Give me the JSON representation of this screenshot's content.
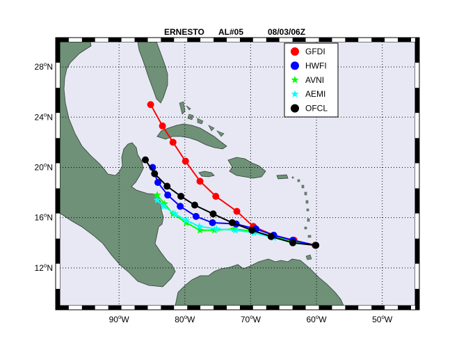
{
  "title": {
    "storm": "ERNESTO",
    "advisory": "AL#05",
    "date": "08/03/06Z"
  },
  "chart_data": {
    "type": "map-track",
    "lon_range": [
      -99,
      -45
    ],
    "lat_range": [
      9,
      30
    ],
    "lon_ticks": [
      {
        "value": -90,
        "num": "90",
        "hem": "W"
      },
      {
        "value": -80,
        "num": "80",
        "hem": "W"
      },
      {
        "value": -70,
        "num": "70",
        "hem": "W"
      },
      {
        "value": -60,
        "num": "60",
        "hem": "W"
      },
      {
        "value": -50,
        "num": "50",
        "hem": "W"
      }
    ],
    "lat_ticks": [
      {
        "value": 12,
        "num": "12",
        "hem": "N"
      },
      {
        "value": 16,
        "num": "16",
        "hem": "N"
      },
      {
        "value": 20,
        "num": "20",
        "hem": "N"
      },
      {
        "value": 24,
        "num": "24",
        "hem": "N"
      },
      {
        "value": 28,
        "num": "28",
        "hem": "N"
      }
    ],
    "grid": true,
    "legend_position": "top-right",
    "series": [
      {
        "name": "GFDI",
        "color": "#ff0000",
        "marker": "circle",
        "points": [
          [
            -85.2,
            25.0
          ],
          [
            -83.4,
            23.3
          ],
          [
            -81.8,
            22.0
          ],
          [
            -79.9,
            20.5
          ],
          [
            -77.7,
            18.9
          ],
          [
            -75.3,
            17.7
          ],
          [
            -72.1,
            16.5
          ],
          [
            -69.6,
            15.3
          ],
          [
            -66.5,
            14.6
          ],
          [
            -63.4,
            14.2
          ],
          [
            -60.2,
            13.8
          ]
        ]
      },
      {
        "name": "HWFI",
        "color": "#0000ff",
        "marker": "circle",
        "points": [
          [
            -84.9,
            20.0
          ],
          [
            -84.1,
            18.8
          ],
          [
            -82.6,
            17.8
          ],
          [
            -80.7,
            16.9
          ],
          [
            -78.3,
            16.1
          ],
          [
            -75.8,
            15.6
          ],
          [
            -72.2,
            15.5
          ],
          [
            -69.2,
            15.1
          ],
          [
            -66.5,
            14.6
          ],
          [
            -63.6,
            14.2
          ],
          [
            -60.1,
            13.8
          ]
        ]
      },
      {
        "name": "AVNI",
        "color": "#00ff00",
        "marker": "star",
        "points": [
          [
            -84.2,
            17.8
          ],
          [
            -83.1,
            17.1
          ],
          [
            -81.8,
            16.3
          ],
          [
            -79.8,
            15.6
          ],
          [
            -77.7,
            15.0
          ],
          [
            -75.5,
            15.0
          ],
          [
            -72.5,
            15.1
          ],
          [
            -69.5,
            14.9
          ],
          [
            -66.5,
            14.5
          ],
          [
            -63.5,
            14.1
          ],
          [
            -60.2,
            13.8
          ]
        ]
      },
      {
        "name": "AEMI",
        "color": "#00ffff",
        "marker": "star",
        "points": [
          [
            -84.2,
            17.4
          ],
          [
            -83.2,
            16.9
          ],
          [
            -81.5,
            16.3
          ],
          [
            -79.8,
            15.8
          ],
          [
            -77.8,
            15.3
          ],
          [
            -75.2,
            15.1
          ],
          [
            -72.3,
            15.0
          ],
          [
            -69.5,
            14.8
          ],
          [
            -66.5,
            14.4
          ],
          [
            -63.5,
            14.0
          ],
          [
            -60.2,
            13.8
          ]
        ]
      },
      {
        "name": "OFCL",
        "color": "#000000",
        "marker": "circle",
        "points": [
          [
            -86.0,
            20.6
          ],
          [
            -84.6,
            19.5
          ],
          [
            -82.7,
            18.5
          ],
          [
            -80.6,
            17.7
          ],
          [
            -78.5,
            17.0
          ],
          [
            -75.7,
            16.3
          ],
          [
            -72.8,
            15.6
          ],
          [
            -69.8,
            15.0
          ],
          [
            -66.9,
            14.5
          ],
          [
            -63.6,
            14.0
          ],
          [
            -60.1,
            13.8
          ]
        ]
      }
    ]
  },
  "colors": {
    "ocean": "#e8e8f5",
    "land": "#6f9177",
    "land_edge": "#2f3f33",
    "grid": "#000000"
  }
}
